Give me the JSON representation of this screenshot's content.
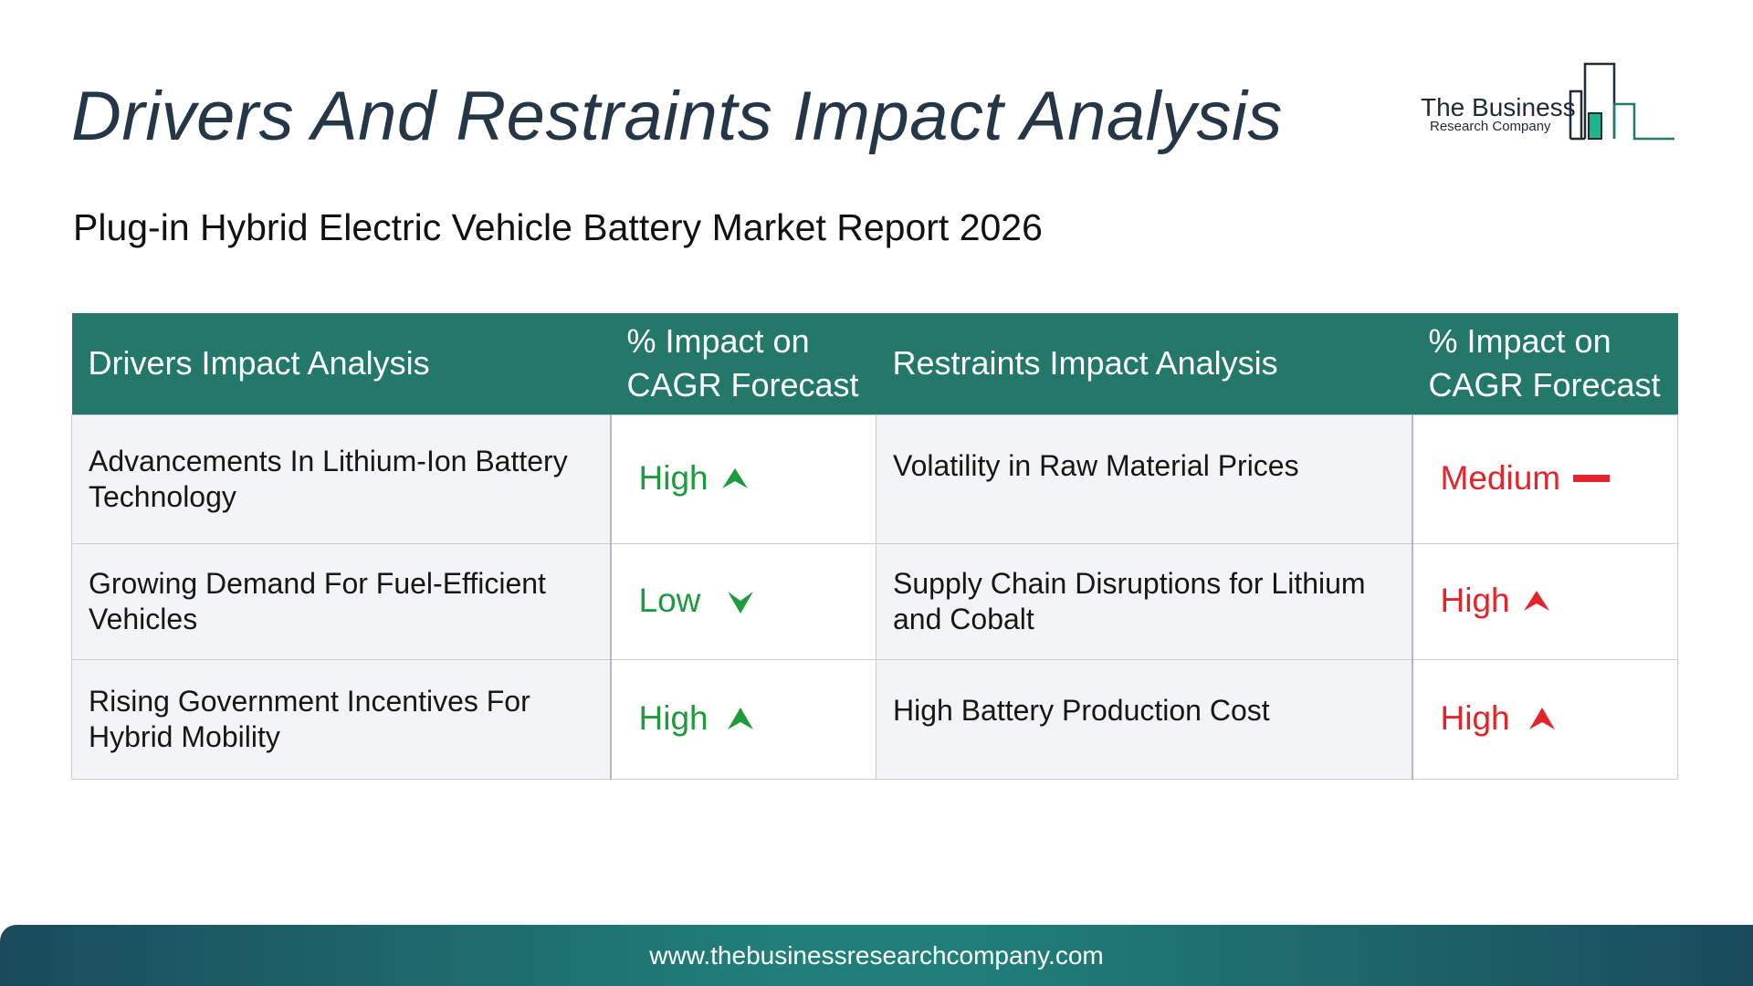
{
  "page": {
    "title": "Drivers And Restraints Impact Analysis",
    "subtitle": "Plug-in Hybrid Electric Vehicle Battery Market Report 2026"
  },
  "logo": {
    "line1": "The Business",
    "line2": "Research Company",
    "icon": "city-skyline-bars-icon",
    "colors": {
      "text": "#1f2a33",
      "accent": "#24786a",
      "bar_fill": "#20b38f"
    }
  },
  "table": {
    "headers": [
      "Drivers Impact Analysis",
      "% Impact on CAGR Forecast",
      "Restraints Impact Analysis",
      "% Impact on CAGR Forecast"
    ],
    "header_color": "#24786a",
    "rows": [
      {
        "driver": "Advancements In Lithium-Ion Battery Technology",
        "driver_impact": "High",
        "driver_icon": "arrow-up-icon",
        "restraint": "Volatility in Raw Material Prices",
        "restraint_impact": "Medium",
        "restraint_icon": "dash-icon"
      },
      {
        "driver": "Growing Demand For Fuel-Efficient Vehicles",
        "driver_impact": "Low",
        "driver_icon": "arrow-down-icon",
        "restraint": "Supply Chain Disruptions for Lithium and Cobalt",
        "restraint_impact": "High",
        "restraint_icon": "arrow-up-icon"
      },
      {
        "driver": "Rising Government Incentives For Hybrid Mobility",
        "driver_impact": "High",
        "driver_icon": "arrow-up-icon",
        "restraint": "High Battery Production Cost",
        "restraint_impact": "High",
        "restraint_icon": "arrow-up-icon"
      }
    ],
    "colors": {
      "driver_impact": "#1e9b3c",
      "restraint_impact": "#e3252b"
    }
  },
  "footer": {
    "url": "www.thebusinessresearchcompany.com",
    "colors": {
      "gradient_edge": "#1a4b5c",
      "gradient_center": "#208079"
    }
  }
}
